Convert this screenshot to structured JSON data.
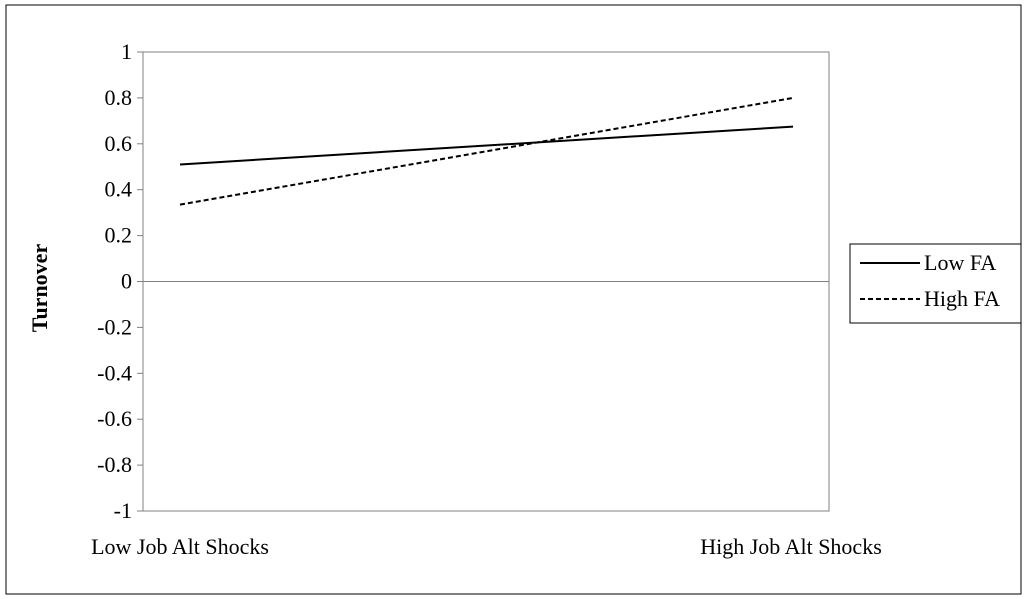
{
  "chart_data": {
    "type": "line",
    "title": "",
    "xlabel": "",
    "ylabel": "Turnover",
    "categories": [
      "Low Job Alt Shocks",
      "High Job Alt Shocks"
    ],
    "ylim": [
      -1,
      1
    ],
    "yticks": [
      1,
      0.8,
      0.6,
      0.4,
      0.2,
      0,
      -0.2,
      -0.4,
      -0.6,
      -0.8,
      -1
    ],
    "ytick_labels": [
      "1",
      "0.8",
      "0.6",
      "0.4",
      "0.2",
      "0",
      "-0.2",
      "-0.4",
      "-0.6",
      "-0.8",
      "-1"
    ],
    "grid": false,
    "zero_line": true,
    "legend_position": "right",
    "series": [
      {
        "name": "Low FA",
        "values": [
          0.51,
          0.675
        ],
        "line_style": "solid",
        "color": "#000000"
      },
      {
        "name": "High FA",
        "values": [
          0.335,
          0.8
        ],
        "line_style": "dashed",
        "color": "#000000"
      }
    ]
  }
}
